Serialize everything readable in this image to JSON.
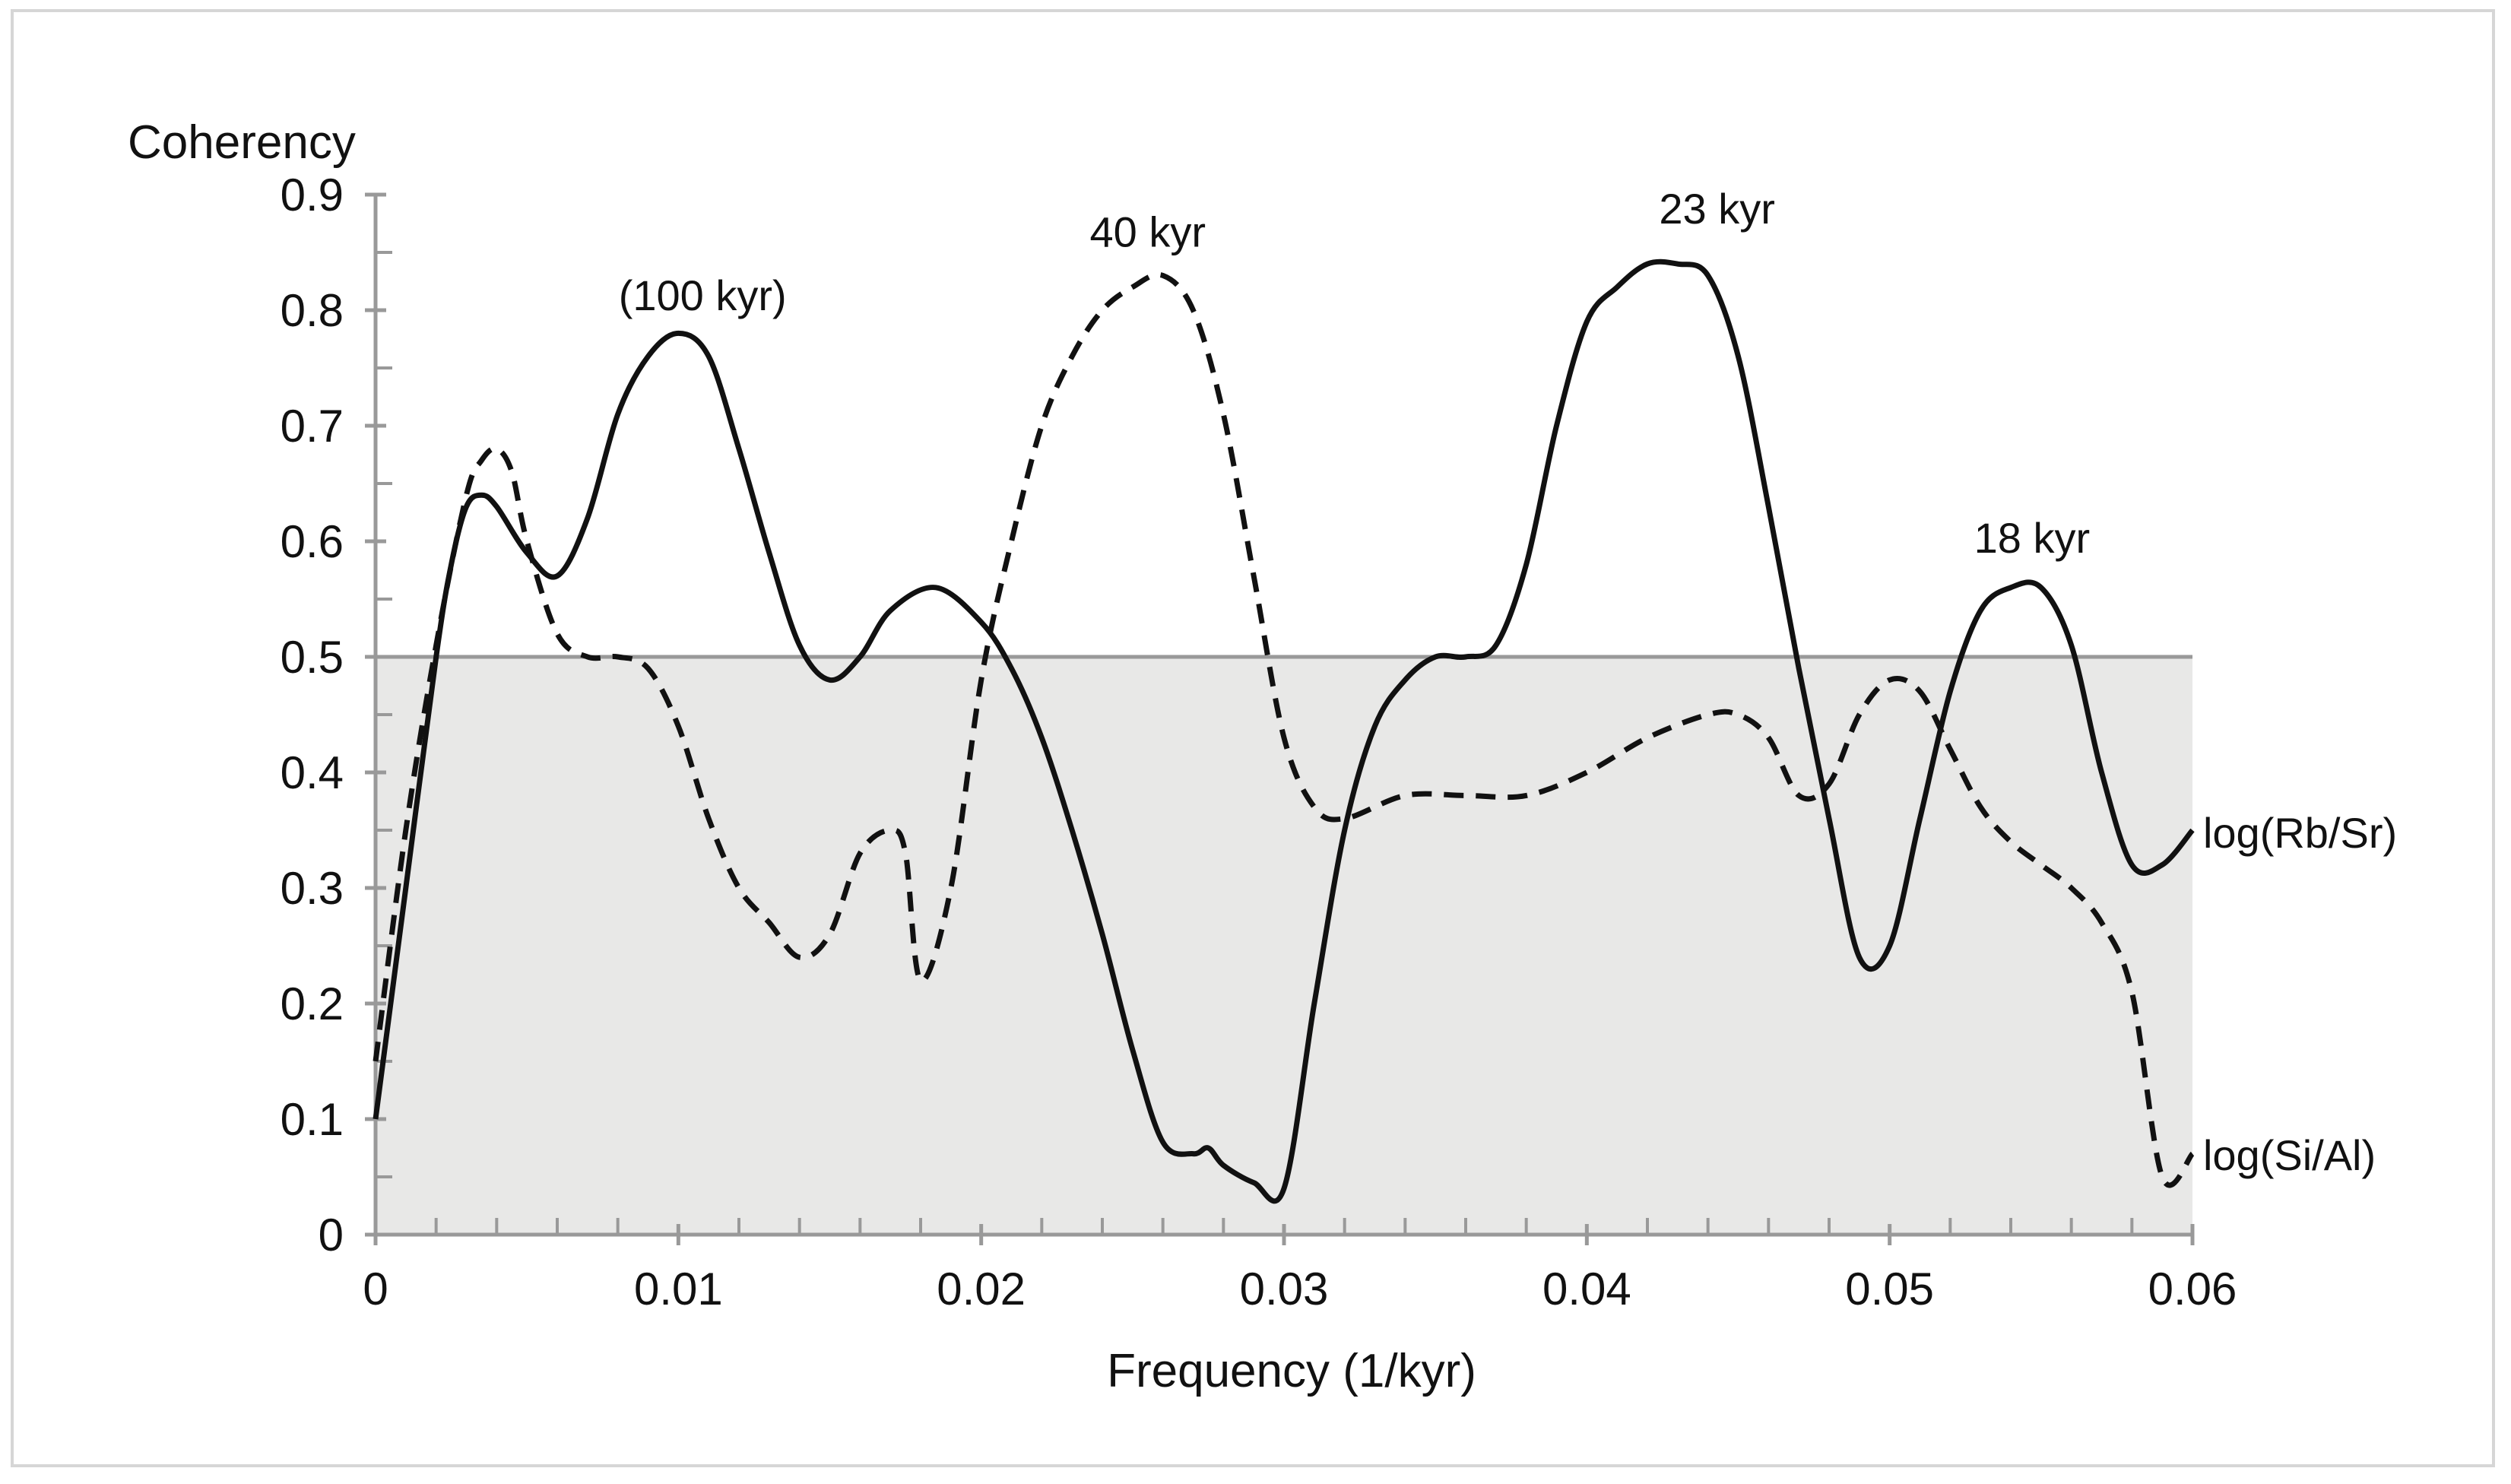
{
  "chart_data": {
    "type": "line",
    "title": "",
    "xlabel": "Frequency (1/kyr)",
    "ylabel": "Coherency",
    "xlim": [
      0,
      0.06
    ],
    "ylim": [
      0,
      0.9
    ],
    "x_ticks": [
      "0",
      "0.01",
      "0.02",
      "0.03",
      "0.04",
      "0.05",
      "0.06"
    ],
    "x_tick_values": [
      0,
      0.01,
      0.02,
      0.03,
      0.04,
      0.05,
      0.06
    ],
    "y_ticks": [
      "0",
      "0.1",
      "0.2",
      "0.3",
      "0.4",
      "0.5",
      "0.6",
      "0.7",
      "0.8",
      "0.9"
    ],
    "y_tick_values": [
      0,
      0.1,
      0.2,
      0.3,
      0.4,
      0.5,
      0.6,
      0.7,
      0.8,
      0.9
    ],
    "threshold": 0.5,
    "grid": false,
    "series": [
      {
        "name": "log(Rb/Sr)",
        "style": "solid",
        "x": [
          0,
          0.001,
          0.002,
          0.0025,
          0.003,
          0.0035,
          0.004,
          0.005,
          0.006,
          0.007,
          0.008,
          0.009,
          0.01,
          0.011,
          0.012,
          0.013,
          0.014,
          0.015,
          0.016,
          0.017,
          0.0185,
          0.02,
          0.021,
          0.022,
          0.023,
          0.024,
          0.025,
          0.026,
          0.027,
          0.0275,
          0.028,
          0.029,
          0.03,
          0.031,
          0.032,
          0.033,
          0.034,
          0.035,
          0.036,
          0.037,
          0.038,
          0.039,
          0.04,
          0.041,
          0.042,
          0.043,
          0.044,
          0.045,
          0.046,
          0.047,
          0.048,
          0.049,
          0.05,
          0.051,
          0.052,
          0.053,
          0.054,
          0.055,
          0.056,
          0.057,
          0.058,
          0.059,
          0.06
        ],
        "values": [
          0.1,
          0.3,
          0.5,
          0.58,
          0.63,
          0.64,
          0.63,
          0.59,
          0.57,
          0.62,
          0.71,
          0.76,
          0.78,
          0.76,
          0.68,
          0.59,
          0.51,
          0.48,
          0.5,
          0.54,
          0.56,
          0.53,
          0.49,
          0.43,
          0.35,
          0.26,
          0.16,
          0.08,
          0.07,
          0.075,
          0.06,
          0.045,
          0.04,
          0.2,
          0.35,
          0.44,
          0.48,
          0.5,
          0.5,
          0.51,
          0.58,
          0.7,
          0.79,
          0.82,
          0.84,
          0.84,
          0.83,
          0.76,
          0.63,
          0.49,
          0.36,
          0.24,
          0.25,
          0.36,
          0.47,
          0.54,
          0.56,
          0.56,
          0.51,
          0.4,
          0.32,
          0.32,
          0.35
        ]
      },
      {
        "name": "log(Si/Al)",
        "style": "dashed",
        "x": [
          0,
          0.001,
          0.002,
          0.003,
          0.0035,
          0.004,
          0.0045,
          0.005,
          0.006,
          0.007,
          0.008,
          0.009,
          0.01,
          0.011,
          0.012,
          0.013,
          0.014,
          0.015,
          0.016,
          0.017,
          0.0175,
          0.018,
          0.019,
          0.02,
          0.021,
          0.022,
          0.023,
          0.024,
          0.025,
          0.026,
          0.027,
          0.028,
          0.029,
          0.03,
          0.031,
          0.032,
          0.034,
          0.036,
          0.038,
          0.04,
          0.042,
          0.044,
          0.045,
          0.046,
          0.047,
          0.048,
          0.049,
          0.05,
          0.051,
          0.052,
          0.053,
          0.054,
          0.055,
          0.056,
          0.057,
          0.058,
          0.059,
          0.06
        ],
        "values": [
          0.15,
          0.35,
          0.51,
          0.64,
          0.67,
          0.68,
          0.66,
          0.6,
          0.52,
          0.5,
          0.5,
          0.49,
          0.44,
          0.36,
          0.3,
          0.27,
          0.24,
          0.26,
          0.33,
          0.35,
          0.33,
          0.22,
          0.3,
          0.48,
          0.6,
          0.7,
          0.76,
          0.8,
          0.82,
          0.83,
          0.8,
          0.71,
          0.57,
          0.43,
          0.37,
          0.36,
          0.38,
          0.38,
          0.38,
          0.4,
          0.43,
          0.45,
          0.45,
          0.43,
          0.38,
          0.39,
          0.45,
          0.48,
          0.47,
          0.42,
          0.37,
          0.34,
          0.32,
          0.3,
          0.27,
          0.21,
          0.05,
          0.07
        ]
      }
    ],
    "annotations": [
      {
        "text": "(100 kyr)",
        "x": 0.0108,
        "y": 0.8
      },
      {
        "text": "40 kyr",
        "x": 0.0255,
        "y": 0.855
      },
      {
        "text": "23 kyr",
        "x": 0.0443,
        "y": 0.875
      },
      {
        "text": "18 kyr",
        "x": 0.0547,
        "y": 0.59
      }
    ],
    "series_labels": [
      {
        "text": "log(Rb/Sr)",
        "x": 0.0601,
        "y": 0.348
      },
      {
        "text": "log(Si/Al)",
        "x": 0.0601,
        "y": 0.069
      }
    ]
  }
}
